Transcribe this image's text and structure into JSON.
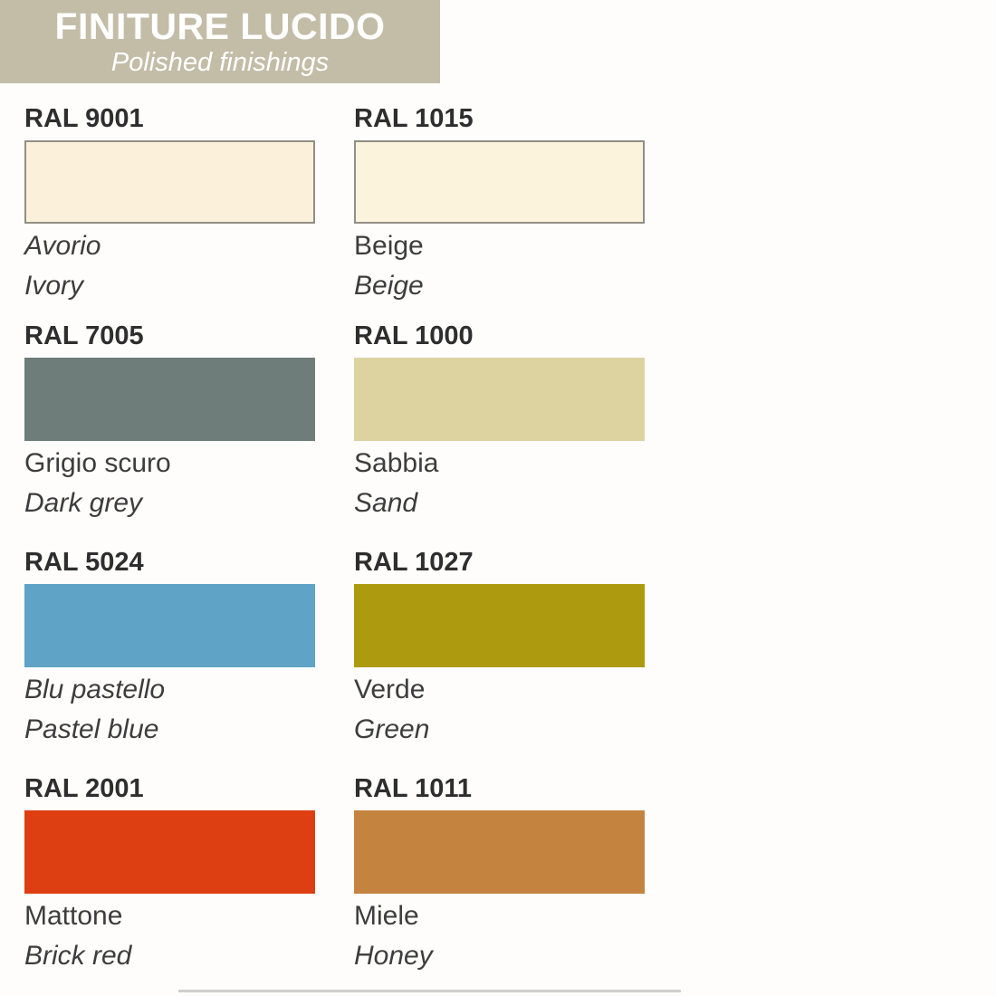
{
  "header": {
    "title": "FINITURE LUCIDO",
    "subtitle": "Polished finishings",
    "bg": "#c3bda8",
    "text_color": "#ffffff"
  },
  "swatches": [
    {
      "ral": "RAL 9001",
      "name_it": "Avorio",
      "name_en": "Ivory",
      "color": "#fbf1da",
      "bordered": "true",
      "it_style": "italic"
    },
    {
      "ral": "RAL 1015",
      "name_it": "Beige",
      "name_en": "Beige",
      "color": "#fcf3dc",
      "bordered": "true",
      "it_style": "normal"
    },
    {
      "ral": "RAL 7005",
      "name_it": "Grigio scuro",
      "name_en": "Dark grey",
      "color": "#6f7d7a",
      "bordered": "false",
      "it_style": "normal"
    },
    {
      "ral": "RAL 1000",
      "name_it": "Sabbia",
      "name_en": "Sand",
      "color": "#ddd3a1",
      "bordered": "false",
      "it_style": "normal"
    },
    {
      "ral": "RAL 5024",
      "name_it": "Blu pastello",
      "name_en": "Pastel blue",
      "color": "#5fa3c7",
      "bordered": "false",
      "it_style": "italic"
    },
    {
      "ral": "RAL 1027",
      "name_it": "Verde",
      "name_en": "Green",
      "color": "#ae9a0e",
      "bordered": "false",
      "it_style": "normal"
    },
    {
      "ral": "RAL 2001",
      "name_it": "Mattone",
      "name_en": "Brick red",
      "color": "#de3f12",
      "bordered": "false",
      "it_style": "normal"
    },
    {
      "ral": "RAL 1011",
      "name_it": "Miele",
      "name_en": "Honey",
      "color": "#c48440",
      "bordered": "false",
      "it_style": "normal"
    }
  ]
}
